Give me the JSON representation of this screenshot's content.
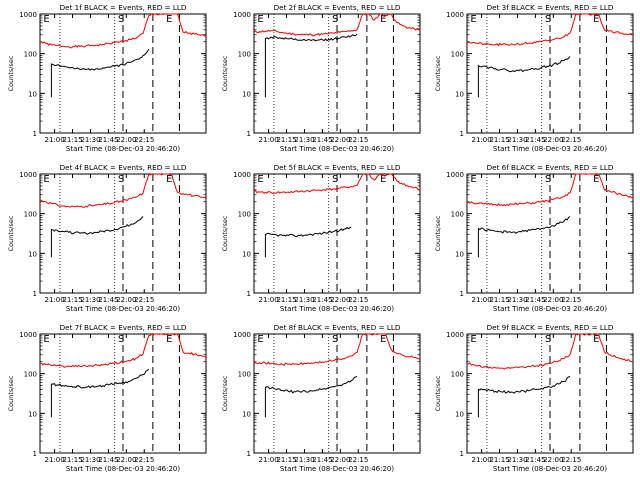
{
  "chart_data": [
    {
      "type": "line",
      "title": "Det 1f BLACK = Events, RED = LLD",
      "xlabel": "Start Time (08-Dec-03 20:46:20)",
      "ylabel": "Counts/sec",
      "yscale": "log",
      "ylim": [
        1,
        1000
      ],
      "x_ticks": [
        "21:00",
        "21:15",
        "21:30",
        "21:45",
        "22:00",
        "22:15"
      ],
      "y_ticks": [
        "1",
        "10",
        "100",
        "1000"
      ],
      "markers": [
        "E",
        "S",
        "E"
      ],
      "grid": false,
      "series": [
        {
          "color": "#ff0000",
          "values": [
            200,
            180,
            165,
            160,
            155,
            150,
            150,
            152,
            155,
            160,
            165,
            170,
            180,
            190,
            200,
            215,
            230,
            260,
            320,
            900,
            1000,
            1000,
            1000,
            1000,
            1000,
            350,
            330,
            310,
            290,
            270
          ]
        },
        {
          "color": "#000000",
          "values": [
            null,
            null,
            55,
            52,
            48,
            45,
            42,
            40,
            40,
            41,
            42,
            44,
            46,
            48,
            52,
            56,
            62,
            72,
            90,
            130,
            null,
            null,
            null,
            null,
            null,
            null,
            null,
            null,
            null,
            null
          ]
        }
      ]
    },
    {
      "type": "line",
      "title": "Det 2f BLACK = Events, RED = LLD",
      "xlabel": "Start Time (08-Dec-03 20:46:20)",
      "ylabel": "Counts/sec",
      "yscale": "log",
      "ylim": [
        1,
        1000
      ],
      "x_ticks": [
        "21:00",
        "21:15",
        "21:30",
        "21:45",
        "22:00",
        "22:15"
      ],
      "y_ticks": [
        "1",
        "10",
        "100",
        "1000"
      ],
      "markers": [
        "E",
        "S",
        "E"
      ],
      "grid": false,
      "series": [
        {
          "color": "#ff0000",
          "values": [
            350,
            360,
            370,
            380,
            360,
            340,
            320,
            310,
            305,
            300,
            300,
            305,
            310,
            320,
            330,
            345,
            360,
            380,
            400,
            1000,
            1000,
            700,
            1000,
            900,
            1000,
            600,
            500,
            450,
            420,
            400
          ]
        },
        {
          "color": "#000000",
          "values": [
            null,
            null,
            240,
            260,
            255,
            245,
            235,
            225,
            220,
            215,
            215,
            218,
            222,
            228,
            235,
            245,
            260,
            280,
            310,
            null,
            null,
            null,
            null,
            null,
            null,
            null,
            null,
            null,
            null,
            null
          ]
        }
      ]
    },
    {
      "type": "line",
      "title": "Det 3f BLACK = Events, RED = LLD",
      "xlabel": "Start Time (08-Dec-03 20:46:20)",
      "ylabel": "Counts/sec",
      "yscale": "log",
      "ylim": [
        1,
        1000
      ],
      "x_ticks": [
        "21:00",
        "21:15",
        "21:30",
        "21:45",
        "22:00",
        "22:15"
      ],
      "y_ticks": [
        "1",
        "10",
        "100",
        "1000"
      ],
      "markers": [
        "E",
        "S",
        "E"
      ],
      "grid": false,
      "series": [
        {
          "color": "#ff0000",
          "values": [
            200,
            190,
            180,
            175,
            170,
            168,
            168,
            170,
            172,
            175,
            180,
            185,
            190,
            200,
            210,
            225,
            245,
            270,
            330,
            1000,
            1000,
            1000,
            1000,
            1000,
            400,
            380,
            350,
            330,
            310,
            300
          ]
        },
        {
          "color": "#000000",
          "values": [
            null,
            null,
            50,
            48,
            45,
            42,
            40,
            38,
            37,
            37,
            38,
            40,
            42,
            45,
            48,
            52,
            58,
            68,
            85,
            null,
            null,
            null,
            null,
            null,
            null,
            null,
            null,
            null,
            null,
            null
          ]
        }
      ]
    },
    {
      "type": "line",
      "title": "Det 4f BLACK = Events, RED = LLD",
      "xlabel": "Start Time (08-Dec-03 20:46:20)",
      "ylabel": "Counts/sec",
      "yscale": "log",
      "ylim": [
        1,
        1000
      ],
      "x_ticks": [
        "21:00",
        "21:15",
        "21:30",
        "21:45",
        "22:00",
        "22:15"
      ],
      "y_ticks": [
        "1",
        "10",
        "100",
        "1000"
      ],
      "markers": [
        "E",
        "S",
        "E"
      ],
      "grid": false,
      "series": [
        {
          "color": "#ff0000",
          "values": [
            220,
            200,
            180,
            165,
            155,
            150,
            150,
            152,
            155,
            160,
            165,
            170,
            180,
            190,
            205,
            220,
            240,
            270,
            330,
            1000,
            1000,
            1000,
            1000,
            1000,
            350,
            320,
            300,
            280,
            260,
            240
          ]
        },
        {
          "color": "#000000",
          "values": [
            null,
            null,
            40,
            38,
            36,
            34,
            33,
            32,
            32,
            33,
            34,
            36,
            38,
            40,
            44,
            48,
            55,
            65,
            85,
            null,
            null,
            null,
            null,
            null,
            null,
            null,
            null,
            null,
            null,
            null
          ]
        }
      ]
    },
    {
      "type": "line",
      "title": "Det 5f BLACK = Events, RED = LLD",
      "xlabel": "Start Time (08-Dec-03 20:46:20)",
      "ylabel": "Counts/sec",
      "yscale": "log",
      "ylim": [
        1,
        1000
      ],
      "x_ticks": [
        "21:00",
        "21:15",
        "21:30",
        "21:45",
        "22:00",
        "22:15"
      ],
      "y_ticks": [
        "1",
        "10",
        "100",
        "1000"
      ],
      "markers": [
        "E",
        "S",
        "E"
      ],
      "grid": false,
      "series": [
        {
          "color": "#ff0000",
          "values": [
            360,
            350,
            345,
            340,
            340,
            345,
            350,
            355,
            360,
            370,
            380,
            390,
            400,
            410,
            420,
            440,
            460,
            480,
            520,
            1000,
            1000,
            700,
            1000,
            900,
            1000,
            650,
            550,
            480,
            450,
            420
          ]
        },
        {
          "color": "#000000",
          "values": [
            null,
            null,
            30,
            30,
            29,
            28,
            28,
            28,
            28,
            29,
            30,
            31,
            32,
            34,
            36,
            38,
            41,
            45,
            null,
            null,
            null,
            null,
            null,
            null,
            null,
            null,
            null,
            null,
            null,
            null
          ]
        }
      ]
    },
    {
      "type": "line",
      "title": "Det 6f BLACK = Events, RED = LLD",
      "xlabel": "Start Time (08-Dec-03 20:46:20)",
      "ylabel": "Counts/sec",
      "yscale": "log",
      "ylim": [
        1,
        1000
      ],
      "x_ticks": [
        "21:00",
        "21:15",
        "21:30",
        "21:45",
        "22:00",
        "22:15"
      ],
      "y_ticks": [
        "1",
        "10",
        "100",
        "1000"
      ],
      "markers": [
        "E",
        "S",
        "E"
      ],
      "grid": false,
      "series": [
        {
          "color": "#ff0000",
          "values": [
            200,
            190,
            180,
            175,
            170,
            168,
            168,
            170,
            172,
            175,
            180,
            185,
            190,
            200,
            210,
            225,
            245,
            270,
            330,
            1000,
            1000,
            1000,
            1000,
            1000,
            400,
            360,
            330,
            300,
            280,
            260
          ]
        },
        {
          "color": "#000000",
          "values": [
            null,
            null,
            42,
            40,
            38,
            36,
            35,
            34,
            34,
            35,
            36,
            38,
            40,
            42,
            46,
            50,
            56,
            66,
            85,
            null,
            null,
            null,
            null,
            null,
            null,
            null,
            null,
            null,
            null,
            null
          ]
        }
      ]
    },
    {
      "type": "line",
      "title": "Det 7f BLACK = Events, RED = LLD",
      "xlabel": "Start Time (08-Dec-03 20:46:20)",
      "ylabel": "Counts/sec",
      "yscale": "log",
      "ylim": [
        1,
        1000
      ],
      "x_ticks": [
        "21:00",
        "21:15",
        "21:30",
        "21:45",
        "22:00",
        "22:15"
      ],
      "y_ticks": [
        "1",
        "10",
        "100",
        "1000"
      ],
      "markers": [
        "E",
        "S",
        "E"
      ],
      "grid": false,
      "series": [
        {
          "color": "#ff0000",
          "values": [
            180,
            170,
            162,
            158,
            155,
            152,
            152,
            153,
            155,
            158,
            162,
            166,
            172,
            180,
            190,
            205,
            222,
            250,
            310,
            900,
            1000,
            1000,
            1000,
            1000,
            1000,
            350,
            330,
            310,
            290,
            270
          ]
        },
        {
          "color": "#000000",
          "values": [
            null,
            null,
            55,
            52,
            50,
            48,
            47,
            46,
            46,
            47,
            48,
            50,
            52,
            55,
            58,
            62,
            68,
            78,
            95,
            130,
            null,
            null,
            null,
            null,
            null,
            null,
            null,
            null,
            null,
            null
          ]
        }
      ]
    },
    {
      "type": "line",
      "title": "Det 8f BLACK = Events, RED = LLD",
      "xlabel": "Start Time (08-Dec-03 20:46:20)",
      "ylabel": "Counts/sec",
      "yscale": "log",
      "ylim": [
        1,
        1000
      ],
      "x_ticks": [
        "21:00",
        "21:15",
        "21:30",
        "21:45",
        "22:00",
        "22:15"
      ],
      "y_ticks": [
        "1",
        "10",
        "100",
        "1000"
      ],
      "markers": [
        "E",
        "S",
        "E"
      ],
      "grid": false,
      "series": [
        {
          "color": "#ff0000",
          "values": [
            200,
            190,
            185,
            180,
            175,
            172,
            172,
            174,
            176,
            180,
            185,
            190,
            198,
            206,
            215,
            230,
            250,
            280,
            340,
            1000,
            1000,
            1000,
            1000,
            1000,
            400,
            320,
            290,
            270,
            255,
            240
          ]
        },
        {
          "color": "#000000",
          "values": [
            null,
            null,
            45,
            43,
            40,
            38,
            36,
            35,
            35,
            36,
            37,
            39,
            41,
            44,
            47,
            51,
            57,
            67,
            85,
            null,
            null,
            null,
            null,
            null,
            null,
            null,
            null,
            null,
            null,
            null
          ]
        }
      ]
    },
    {
      "type": "line",
      "title": "Det 9f BLACK = Events, RED = LLD",
      "xlabel": "Start Time (08-Dec-03 20:46:20)",
      "ylabel": "Counts/sec",
      "yscale": "log",
      "ylim": [
        1,
        1000
      ],
      "x_ticks": [
        "21:00",
        "21:15",
        "21:30",
        "21:45",
        "22:00",
        "22:15"
      ],
      "y_ticks": [
        "1",
        "10",
        "100",
        "1000"
      ],
      "markers": [
        "E",
        "S",
        "E"
      ],
      "grid": false,
      "series": [
        {
          "color": "#ff0000",
          "values": [
            180,
            170,
            160,
            150,
            145,
            140,
            138,
            138,
            140,
            142,
            145,
            150,
            156,
            164,
            175,
            190,
            210,
            240,
            300,
            1000,
            1000,
            1000,
            1000,
            1000,
            350,
            300,
            260,
            240,
            220,
            200
          ]
        },
        {
          "color": "#000000",
          "values": [
            null,
            null,
            40,
            40,
            38,
            36,
            35,
            34,
            34,
            35,
            36,
            38,
            40,
            42,
            45,
            49,
            55,
            64,
            85,
            null,
            null,
            null,
            null,
            null,
            null,
            null,
            null,
            null,
            null,
            null
          ]
        }
      ]
    }
  ]
}
